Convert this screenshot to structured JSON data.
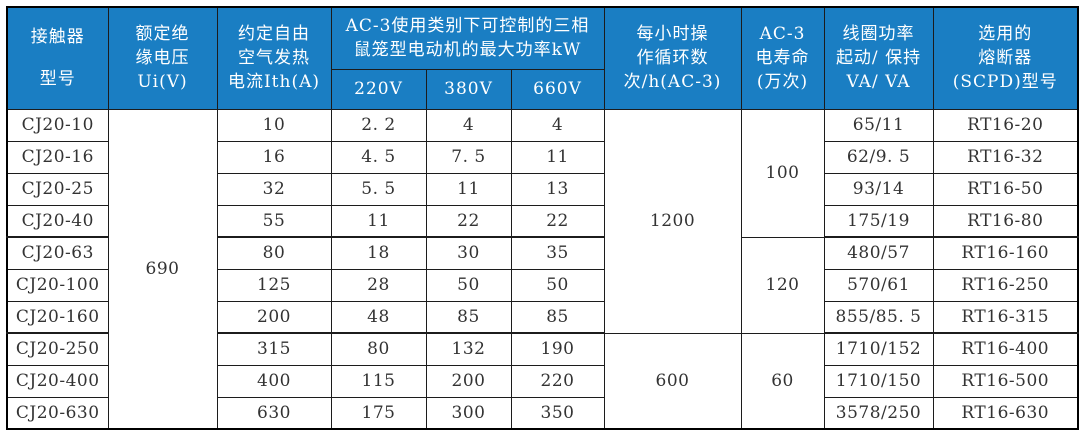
{
  "colors": {
    "header_bg": "#1a7ec3",
    "header_text": "#ffffff",
    "body_text": "#333333",
    "grid_line": "#1c1c1c",
    "outer_border": "#000000",
    "background": "#ffffff"
  },
  "table": {
    "header_rows": [
      {
        "cells": [
          {
            "lines": [
              "接触器",
              "型号"
            ],
            "rowspan": 2,
            "name": "col-header-model",
            "cls": "tall-lines"
          },
          {
            "lines": [
              "额定绝",
              "缘电压",
              "Ui(V)"
            ],
            "rowspan": 2,
            "name": "col-header-insulation-voltage"
          },
          {
            "lines": [
              "约定自由",
              "空气发热",
              "电流Ith(A)"
            ],
            "rowspan": 2,
            "name": "col-header-thermal-current"
          },
          {
            "lines": [
              "AC-3使用类别下可控制的三相",
              "鼠笼型电动机的最大功率kW"
            ],
            "colspan": 3,
            "name": "col-header-ac3-motor-power-group"
          },
          {
            "lines": [
              "每小时操",
              "作循环数",
              "次/h(AC-3)"
            ],
            "rowspan": 2,
            "name": "col-header-operating-cycles"
          },
          {
            "lines": [
              "AC-3",
              "电寿命",
              "(万次)"
            ],
            "rowspan": 2,
            "name": "col-header-electrical-life"
          },
          {
            "lines": [
              "线圈功率",
              "起动/ 保持",
              "VA/ VA"
            ],
            "rowspan": 2,
            "name": "col-header-coil-power"
          },
          {
            "lines": [
              "选用的",
              "熔断器",
              "(SCPD)型号"
            ],
            "rowspan": 2,
            "name": "col-header-fuse-type"
          }
        ]
      },
      {
        "cells": [
          {
            "t": "220V",
            "name": "col-header-220v"
          },
          {
            "t": "380V",
            "name": "col-header-380v"
          },
          {
            "t": "660V",
            "name": "col-header-660v"
          }
        ]
      }
    ],
    "body_rows": [
      {
        "cells": [
          {
            "t": "CJ20-10",
            "name": "model-cell"
          },
          {
            "t": "690",
            "rowspan": 10,
            "name": "insulation-voltage-cell"
          },
          {
            "t": "10"
          },
          {
            "t": "2. 2"
          },
          {
            "t": "4"
          },
          {
            "t": "4"
          },
          {
            "t": "1200",
            "rowspan": 7,
            "name": "operating-cycles-cell"
          },
          {
            "t": "100",
            "rowspan": 4,
            "name": "electrical-life-cell"
          },
          {
            "t": "65/11"
          },
          {
            "t": "RT16-20"
          }
        ]
      },
      {
        "cells": [
          {
            "t": "CJ20-16",
            "name": "model-cell"
          },
          {
            "t": "16"
          },
          {
            "t": "4. 5"
          },
          {
            "t": "7. 5"
          },
          {
            "t": "11"
          },
          {
            "t": "62/9. 5"
          },
          {
            "t": "RT16-32"
          }
        ]
      },
      {
        "cells": [
          {
            "t": "CJ20-25",
            "name": "model-cell"
          },
          {
            "t": "32"
          },
          {
            "t": "5. 5"
          },
          {
            "t": "11"
          },
          {
            "t": "13"
          },
          {
            "t": "93/14"
          },
          {
            "t": "RT16-50"
          }
        ]
      },
      {
        "group_end": true,
        "cells": [
          {
            "t": "CJ20-40",
            "name": "model-cell"
          },
          {
            "t": "55"
          },
          {
            "t": "11"
          },
          {
            "t": "22"
          },
          {
            "t": "22"
          },
          {
            "t": "175/19"
          },
          {
            "t": "RT16-80"
          }
        ]
      },
      {
        "cells": [
          {
            "t": "CJ20-63",
            "name": "model-cell"
          },
          {
            "t": "80"
          },
          {
            "t": "18"
          },
          {
            "t": "30"
          },
          {
            "t": "35"
          },
          {
            "t": "120",
            "rowspan": 3,
            "name": "electrical-life-cell"
          },
          {
            "t": "480/57"
          },
          {
            "t": "RT16-160"
          }
        ]
      },
      {
        "cells": [
          {
            "t": "CJ20-100",
            "name": "model-cell"
          },
          {
            "t": "125"
          },
          {
            "t": "28"
          },
          {
            "t": "50"
          },
          {
            "t": "50"
          },
          {
            "t": "570/61"
          },
          {
            "t": "RT16-250"
          }
        ]
      },
      {
        "group_end": true,
        "cells": [
          {
            "t": "CJ20-160",
            "name": "model-cell"
          },
          {
            "t": "200"
          },
          {
            "t": "48"
          },
          {
            "t": "85"
          },
          {
            "t": "85"
          },
          {
            "t": "855/85. 5"
          },
          {
            "t": "RT16-315"
          }
        ]
      },
      {
        "cells": [
          {
            "t": "CJ20-250",
            "name": "model-cell"
          },
          {
            "t": "315"
          },
          {
            "t": "80"
          },
          {
            "t": "132"
          },
          {
            "t": "190"
          },
          {
            "t": "600",
            "rowspan": 3,
            "name": "operating-cycles-cell"
          },
          {
            "t": "60",
            "rowspan": 3,
            "name": "electrical-life-cell"
          },
          {
            "t": "1710/152"
          },
          {
            "t": "RT16-400"
          }
        ]
      },
      {
        "cells": [
          {
            "t": "CJ20-400",
            "name": "model-cell"
          },
          {
            "t": "400"
          },
          {
            "t": "115"
          },
          {
            "t": "200"
          },
          {
            "t": "220"
          },
          {
            "t": "1710/150"
          },
          {
            "t": "RT16-500"
          }
        ]
      },
      {
        "cells": [
          {
            "t": "CJ20-630",
            "name": "model-cell"
          },
          {
            "t": "630"
          },
          {
            "t": "175"
          },
          {
            "t": "300"
          },
          {
            "t": "350"
          },
          {
            "t": "3578/250"
          },
          {
            "t": "RT16-630"
          }
        ]
      }
    ]
  }
}
